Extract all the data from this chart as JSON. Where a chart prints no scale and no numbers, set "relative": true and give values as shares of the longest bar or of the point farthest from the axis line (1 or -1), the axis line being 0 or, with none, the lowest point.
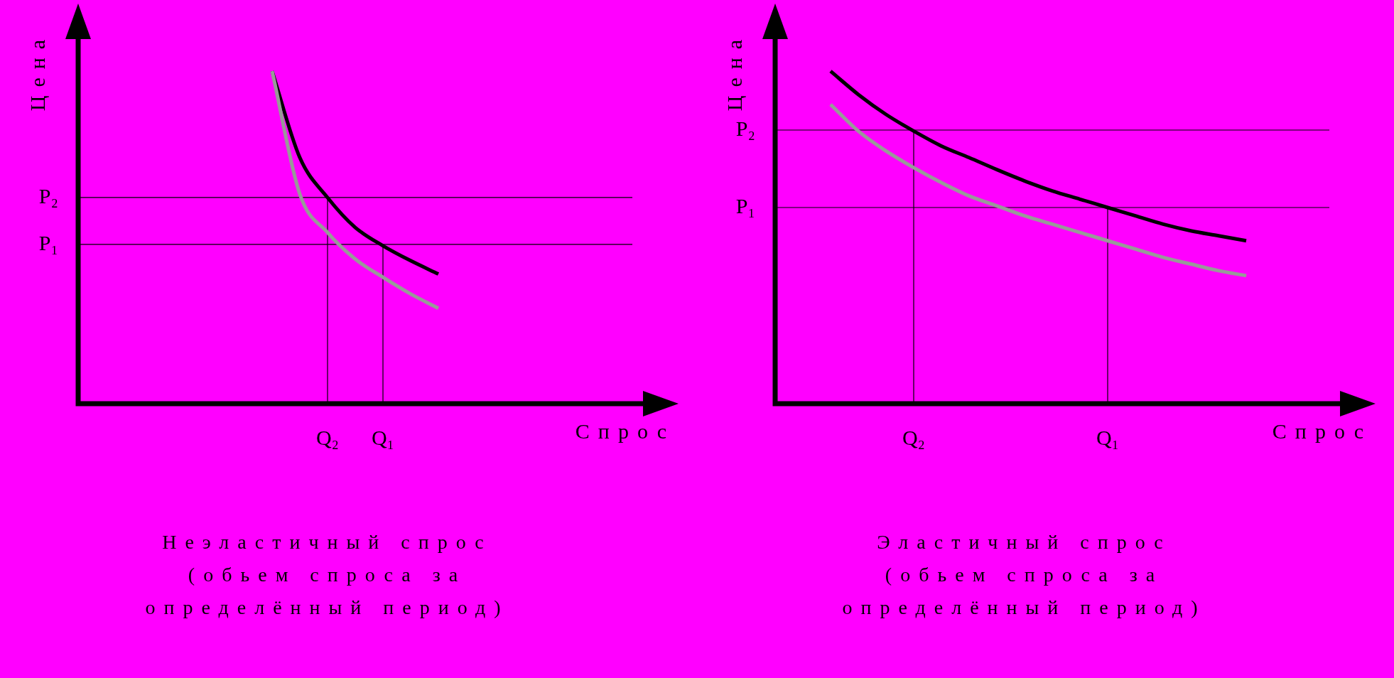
{
  "chart_data": [
    {
      "type": "line",
      "title": "Неэластичный спрос\n(обьем спроса за\nопределённый период)",
      "xlabel": "Спрос",
      "ylabel": "Цена",
      "relative": true,
      "categories": [
        null,
        null,
        null,
        null,
        null,
        null,
        null,
        null,
        null,
        "Q₂",
        null,
        "Q₁",
        null,
        null,
        null,
        null,
        null,
        null,
        null,
        null,
        null
      ],
      "series": [
        {
          "color": "#000000",
          "values": [
            null,
            null,
            null,
            null,
            null,
            null,
            null,
            1.0,
            0.74,
            0.62,
            0.53,
            0.475,
            0.43,
            0.39,
            null,
            null,
            null,
            null,
            null,
            null,
            null
          ]
        },
        {
          "color": "#999999",
          "values": [
            null,
            null,
            null,
            null,
            null,
            null,
            null,
            1.0,
            0.63,
            0.515,
            0.435,
            0.38,
            0.33,
            0.287,
            null,
            null,
            null,
            null,
            null,
            null,
            null
          ]
        }
      ],
      "ref_lines": [
        {
          "axis": "y",
          "value": 0.62,
          "label": "P₂"
        },
        {
          "axis": "y",
          "value": 0.479,
          "label": "P₁"
        },
        {
          "axis": "x",
          "value": "Q₂"
        },
        {
          "axis": "x",
          "value": "Q₁"
        }
      ]
    },
    {
      "type": "line",
      "title": "Эластичный спрос\n(обьем спроса за\nопределённый период)",
      "xlabel": "Спрос",
      "ylabel": "Цена",
      "relative": true,
      "categories": [
        null,
        null,
        null,
        null,
        null,
        "Q₂",
        null,
        null,
        null,
        null,
        null,
        null,
        "Q₁",
        null,
        null,
        null,
        null,
        null,
        null,
        null,
        null
      ],
      "series": [
        {
          "color": "#000000",
          "values": [
            null,
            null,
            1.0,
            0.93,
            0.87,
            0.82,
            0.775,
            0.74,
            0.704,
            0.67,
            0.64,
            0.615,
            0.59,
            0.565,
            0.54,
            0.52,
            0.505,
            0.49,
            null,
            null,
            null
          ]
        },
        {
          "color": "#999999",
          "values": [
            null,
            null,
            0.9,
            0.82,
            0.76,
            0.71,
            0.665,
            0.625,
            0.595,
            0.565,
            0.54,
            0.515,
            0.49,
            0.465,
            0.44,
            0.42,
            0.4,
            0.385,
            null,
            null,
            null
          ]
        }
      ],
      "ref_lines": [
        {
          "axis": "y",
          "value": 0.823,
          "label": "P₂"
        },
        {
          "axis": "y",
          "value": 0.59,
          "label": "P₁"
        },
        {
          "axis": "x",
          "value": "Q₂"
        },
        {
          "axis": "x",
          "value": "Q₁"
        }
      ]
    }
  ]
}
